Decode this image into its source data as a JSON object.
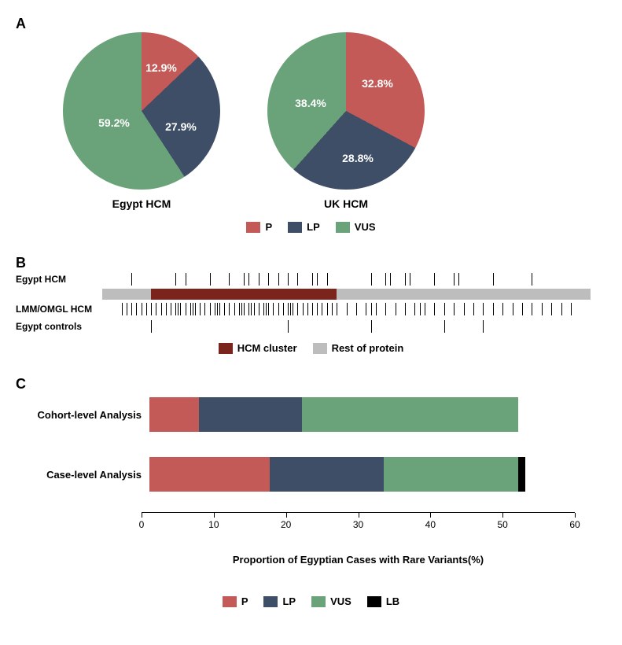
{
  "panelA": {
    "label": "A",
    "pies": [
      {
        "title": "Egypt HCM",
        "slices": [
          {
            "name": "VUS",
            "value": 59.2,
            "color": "#6aa37a",
            "label": "59.2%",
            "lx": 65,
            "ly": 115
          },
          {
            "name": "P",
            "value": 12.9,
            "color": "#c35a57",
            "label": "12.9%",
            "lx": 125,
            "ly": 45
          },
          {
            "name": "LP",
            "value": 27.9,
            "color": "#3d4e66",
            "label": "27.9%",
            "lx": 150,
            "ly": 120
          }
        ]
      },
      {
        "title": "UK HCM",
        "slices": [
          {
            "name": "VUS",
            "value": 38.4,
            "color": "#6aa37a",
            "label": "38.4%",
            "lx": 55,
            "ly": 90
          },
          {
            "name": "P",
            "value": 32.8,
            "color": "#c35a57",
            "label": "32.8%",
            "lx": 140,
            "ly": 65
          },
          {
            "name": "LP",
            "value": 28.8,
            "color": "#3d4e66",
            "label": "28.8%",
            "lx": 115,
            "ly": 160
          }
        ]
      }
    ],
    "legend": [
      {
        "label": "P",
        "color": "#c35a57"
      },
      {
        "label": "LP",
        "color": "#3d4e66"
      },
      {
        "label": "VUS",
        "color": "#6aa37a"
      }
    ]
  },
  "panelB": {
    "label": "B",
    "protein": {
      "start": 0,
      "end": 100,
      "clusterStart": 10,
      "clusterEnd": 48,
      "clusterColor": "#7b241c",
      "restColor": "#bdbdbd"
    },
    "tracks": [
      {
        "label": "Egypt HCM",
        "positions": [
          6,
          15,
          17,
          22,
          26,
          29,
          30,
          32,
          34,
          36,
          38,
          40,
          43,
          44,
          46,
          55,
          58,
          59,
          62,
          63,
          68,
          72,
          73,
          80,
          88
        ]
      },
      {
        "label": "LMM/OMGL HCM",
        "positions": [
          4,
          5,
          6,
          7,
          8,
          9,
          10,
          11,
          12,
          13,
          14,
          15,
          15.5,
          16,
          17,
          18,
          18.5,
          19,
          20,
          21,
          22,
          23,
          23.5,
          24,
          25,
          26,
          27,
          28,
          28.5,
          29,
          30,
          30.5,
          31,
          32,
          33,
          33.5,
          34,
          35,
          36,
          37,
          38,
          38.5,
          39,
          40,
          41,
          42,
          43,
          44,
          45,
          46,
          47,
          48,
          50,
          52,
          54,
          55,
          56,
          58,
          60,
          62,
          64,
          65,
          66,
          68,
          70,
          72,
          74,
          76,
          78,
          80,
          82,
          84,
          86,
          88,
          90,
          92,
          94,
          96
        ]
      },
      {
        "label": "Egypt controls",
        "positions": [
          10,
          38,
          55,
          70,
          78
        ]
      }
    ],
    "legend": [
      {
        "label": "HCM cluster",
        "color": "#7b241c"
      },
      {
        "label": "Rest of protein",
        "color": "#bdbdbd"
      }
    ]
  },
  "panelC": {
    "label": "C",
    "xmax": 60,
    "xticks": [
      0,
      10,
      20,
      30,
      40,
      50,
      60
    ],
    "xlabel": "Proportion of Egyptian Cases with Rare Variants(%)",
    "bars": [
      {
        "label": "Cohort-level Analysis",
        "segments": [
          {
            "name": "P",
            "value": 7,
            "color": "#c35a57"
          },
          {
            "name": "LP",
            "value": 14.5,
            "color": "#3d4e66"
          },
          {
            "name": "VUS",
            "value": 30.5,
            "color": "#6aa37a"
          }
        ]
      },
      {
        "label": "Case-level Analysis",
        "segments": [
          {
            "name": "P",
            "value": 17,
            "color": "#c35a57"
          },
          {
            "name": "LP",
            "value": 16,
            "color": "#3d4e66"
          },
          {
            "name": "VUS",
            "value": 19,
            "color": "#6aa37a"
          },
          {
            "name": "LB",
            "value": 1,
            "color": "#000000"
          }
        ]
      }
    ],
    "legend": [
      {
        "label": "P",
        "color": "#c35a57"
      },
      {
        "label": "LP",
        "color": "#3d4e66"
      },
      {
        "label": "VUS",
        "color": "#6aa37a"
      },
      {
        "label": "LB",
        "color": "#000000"
      }
    ]
  }
}
